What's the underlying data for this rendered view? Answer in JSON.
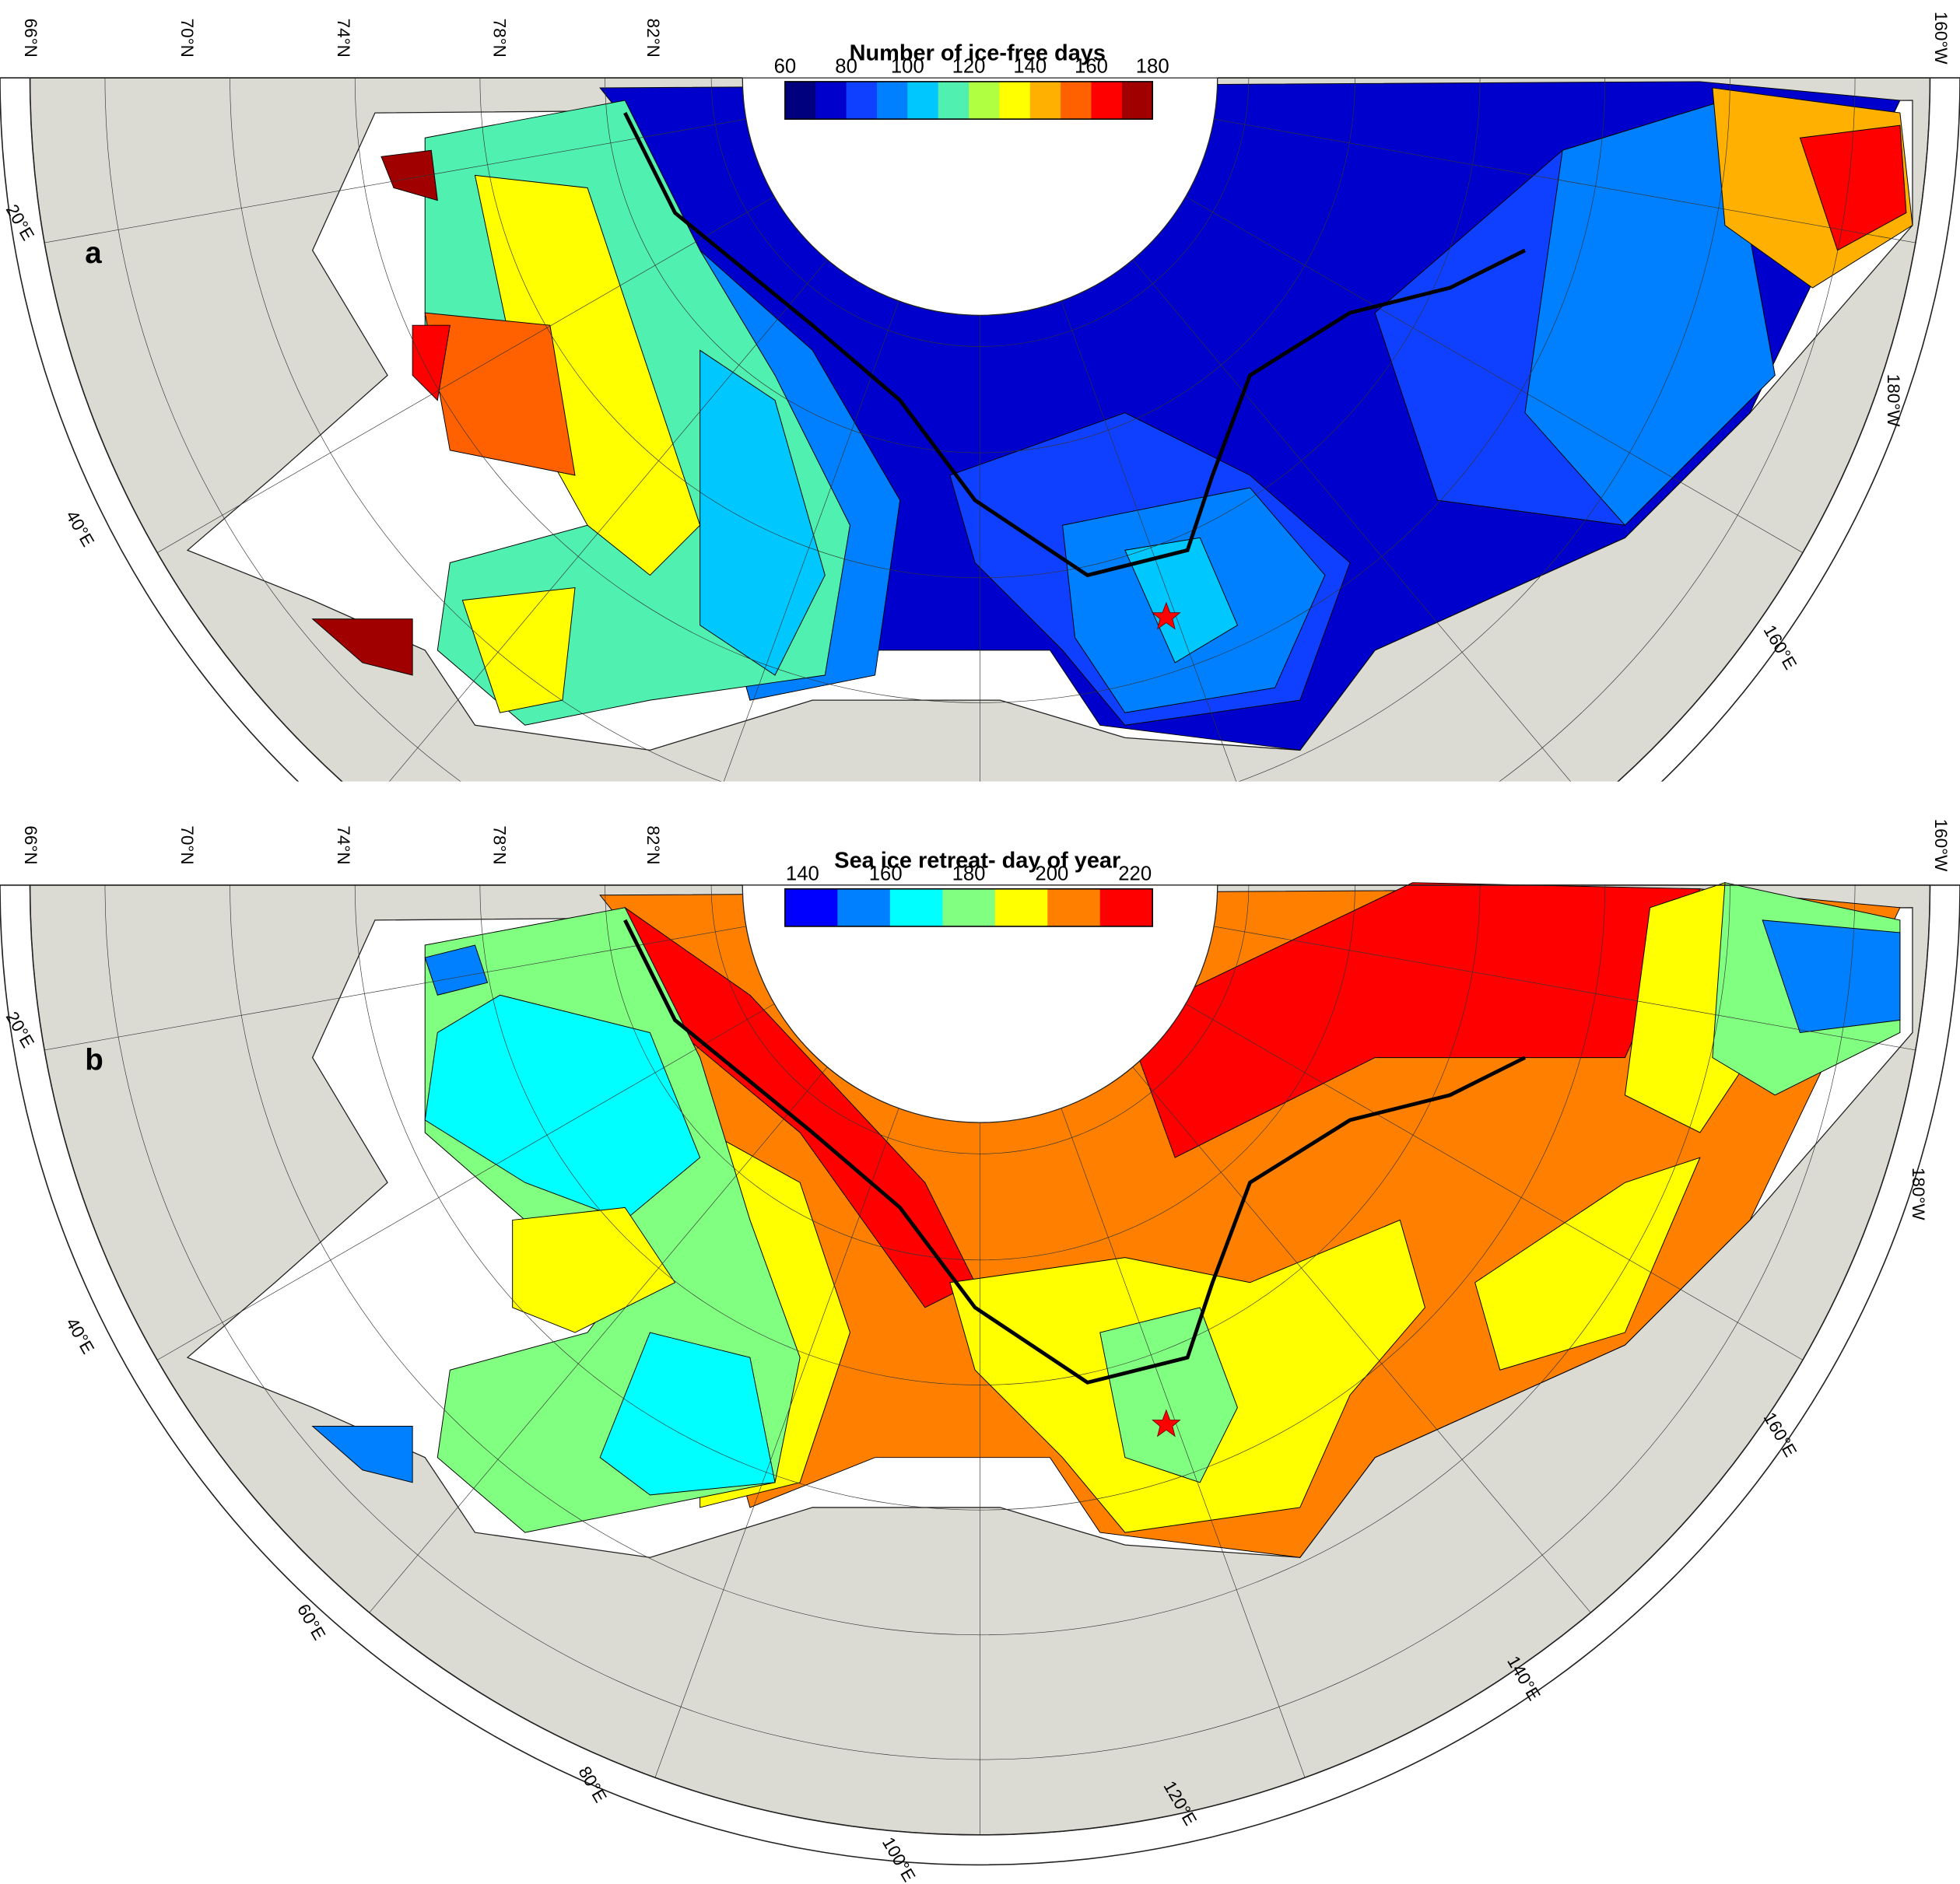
{
  "panels": [
    {
      "label": "a",
      "title": "Number of ice-free days",
      "colorbar": {
        "ticks": [
          60,
          80,
          100,
          120,
          140,
          160,
          180
        ],
        "colors": [
          "#00007f",
          "#0000cc",
          "#1040ff",
          "#0080ff",
          "#00c8ff",
          "#50f0b0",
          "#b0ff40",
          "#ffff00",
          "#ffb000",
          "#ff6000",
          "#ff0000",
          "#a00000"
        ]
      },
      "latitude_labels": [
        "66°N",
        "70°N",
        "74°N",
        "78°N",
        "82°N"
      ],
      "longitude_labels": [
        "20°E",
        "40°E",
        "160°E",
        "180°W",
        "160°W"
      ]
    },
    {
      "label": "b",
      "title": "Sea ice retreat- day of year",
      "colorbar": {
        "ticks": [
          140,
          160,
          180,
          200,
          220
        ],
        "colors": [
          "#0000ff",
          "#0080ff",
          "#00ffff",
          "#80ff80",
          "#ffff00",
          "#ff8000",
          "#ff0000"
        ]
      },
      "latitude_labels": [
        "66°N",
        "70°N",
        "74°N",
        "78°N",
        "82°N"
      ],
      "longitude_labels": [
        "20°E",
        "40°E",
        "60°E",
        "80°E",
        "100°E",
        "120°E",
        "140°E",
        "160°E",
        "180°W",
        "160°W"
      ]
    }
  ]
}
